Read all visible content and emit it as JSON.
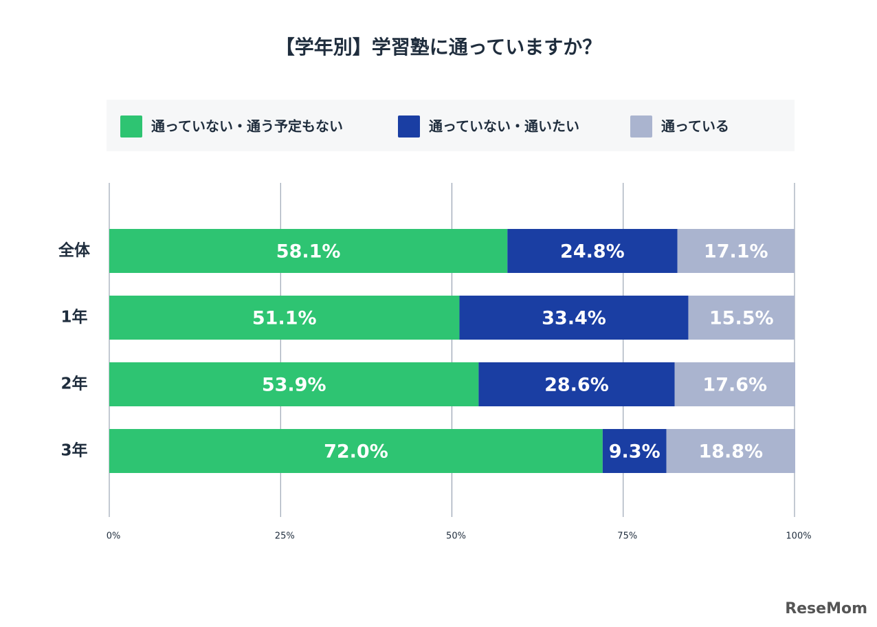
{
  "chart_data": {
    "type": "stacked-barh",
    "title": "【学年別】学習塾に通っていますか？",
    "categories": [
      "全体",
      "1年",
      "2年",
      "3年"
    ],
    "series": [
      {
        "name": "通っていない・通う予定もない",
        "color": "#2ec472",
        "values": [
          58.1,
          51.1,
          53.9,
          72.0
        ],
        "value_labels": [
          "58.1%",
          "51.1%",
          "53.9%",
          "72.0%"
        ]
      },
      {
        "name": "通っていない・通いたい",
        "color": "#1a3ea3",
        "values": [
          24.8,
          33.4,
          28.6,
          9.3
        ],
        "value_labels": [
          "24.8%",
          "33.4%",
          "28.6%",
          "9.3%"
        ]
      },
      {
        "name": "通っている",
        "color": "#aab4cf",
        "values": [
          17.1,
          15.5,
          17.6,
          18.8
        ],
        "value_labels": [
          "17.1%",
          "15.5%",
          "17.6%",
          "18.8%"
        ]
      }
    ],
    "xlim": [
      0,
      100
    ],
    "xticks": [
      {
        "value": 0,
        "label": "0%"
      },
      {
        "value": 25,
        "label": "25%"
      },
      {
        "value": 50,
        "label": "50%"
      },
      {
        "value": 75,
        "label": "75%"
      },
      {
        "value": 100,
        "label": "100%"
      }
    ],
    "grid": true,
    "legend": "top",
    "watermark": "ReseMom"
  }
}
